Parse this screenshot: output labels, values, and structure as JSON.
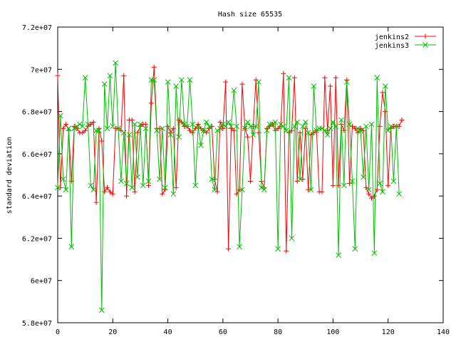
{
  "chart_data": {
    "type": "line",
    "title": "Hash size 65535",
    "xlabel": "",
    "ylabel": "standard deviation",
    "xlim": [
      0,
      140
    ],
    "ylim": [
      58000000,
      72000000
    ],
    "xticks": [
      0,
      20,
      40,
      60,
      80,
      100,
      120,
      140
    ],
    "yticks": [
      58000000,
      60000000,
      62000000,
      64000000,
      66000000,
      68000000,
      70000000,
      72000000
    ],
    "xtick_labels": [
      "0",
      "20",
      "40",
      "60",
      "80",
      "100",
      "120",
      "140"
    ],
    "ytick_labels": [
      "5.8e+07",
      "6e+07",
      "6.2e+07",
      "6.4e+07",
      "6.6e+07",
      "6.8e+07",
      "7e+07",
      "7.2e+07"
    ],
    "grid": false,
    "legend_position": "top-right",
    "series": [
      {
        "name": "jenkins2",
        "color": "#ff0000",
        "marker": "plus",
        "values": [
          69.7,
          64.4,
          67.2,
          67.4,
          67.1,
          64.7,
          67.3,
          67.2,
          67.0,
          67.0,
          67.1,
          67.3,
          67.4,
          67.5,
          63.7,
          67.2,
          66.6,
          64.2,
          64.4,
          64.2,
          64.1,
          67.2,
          67.2,
          67.1,
          69.7,
          64.0,
          67.6,
          67.6,
          64.2,
          67.0,
          67.3,
          67.4,
          67.4,
          64.5,
          68.4,
          70.1,
          67.2,
          67.2,
          64.1,
          64.3,
          67.3,
          67.0,
          67.2,
          64.4,
          67.6,
          67.5,
          67.3,
          67.3,
          67.1,
          67.0,
          67.2,
          67.4,
          67.2,
          67.1,
          67.0,
          67.2,
          67.3,
          64.8,
          64.2,
          67.5,
          67.2,
          69.4,
          61.5,
          67.2,
          67.1,
          64.1,
          64.3,
          69.3,
          67.2,
          66.8,
          64.7,
          67.3,
          69.5,
          67.0,
          64.7,
          64.4,
          67.2,
          67.3,
          67.4,
          67.1,
          67.2,
          67.3,
          69.8,
          61.4,
          67.0,
          67.1,
          69.6,
          64.7,
          67.0,
          64.8,
          67.2,
          64.3,
          66.9,
          67.0,
          67.1,
          64.2,
          64.2,
          69.6,
          67.1,
          69.2,
          64.5,
          69.6,
          64.5,
          67.4,
          67.1,
          69.5,
          64.6,
          67.3,
          67.2,
          67.0,
          67.2,
          67.1,
          64.4,
          64.1,
          63.9,
          64.0,
          64.3,
          67.3,
          68.9,
          68.0,
          64.5,
          67.2,
          67.3,
          67.3,
          67.3,
          67.6
        ]
      },
      {
        "name": "jenkins3",
        "color": "#00c000",
        "marker": "cross",
        "values": [
          64.4,
          67.8,
          64.8,
          64.3,
          67.2,
          61.6,
          67.2,
          67.3,
          67.4,
          67.3,
          69.6,
          67.4,
          64.5,
          64.3,
          67.1,
          67.1,
          58.6,
          69.3,
          67.2,
          69.7,
          67.3,
          70.3,
          67.2,
          64.7,
          67.0,
          64.6,
          66.9,
          64.4,
          67.4,
          64.9,
          67.4,
          64.5,
          67.2,
          64.7,
          69.5,
          69.5,
          67.1,
          64.8,
          67.2,
          64.4,
          69.4,
          66.9,
          64.1,
          69.2,
          66.8,
          69.5,
          67.4,
          67.3,
          69.5,
          67.4,
          64.5,
          67.3,
          66.4,
          67.1,
          67.5,
          67.3,
          64.8,
          64.3,
          67.1,
          67.2,
          67.4,
          67.3,
          67.5,
          67.3,
          69.0,
          67.3,
          61.6,
          64.3,
          67.2,
          67.5,
          67.3,
          66.9,
          67.3,
          69.4,
          64.4,
          64.3,
          67.1,
          67.4,
          67.4,
          67.5,
          61.5,
          67.4,
          67.3,
          67.1,
          69.6,
          62.0,
          67.3,
          67.5,
          64.8,
          67.3,
          67.5,
          67.0,
          64.3,
          69.2,
          67.1,
          67.2,
          67.2,
          67.1,
          66.9,
          67.2,
          67.5,
          67.3,
          61.2,
          67.6,
          64.5,
          69.4,
          67.4,
          64.7,
          61.5,
          67.2,
          67.1,
          64.9,
          67.3,
          64.3,
          67.4,
          61.3,
          69.6,
          64.6,
          64.2,
          69.2,
          67.1,
          67.3,
          64.7,
          67.3,
          64.1
        ]
      }
    ]
  }
}
